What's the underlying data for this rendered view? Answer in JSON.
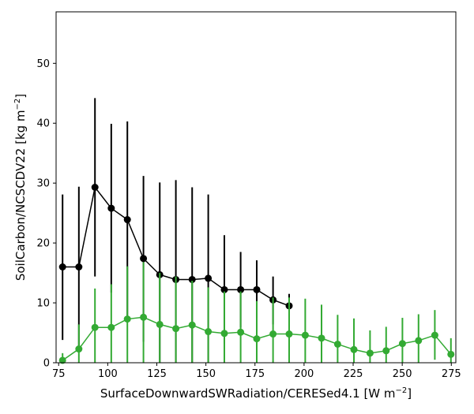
{
  "chart_data": {
    "type": "line",
    "xlabel": "SurfaceDownwardSWRadiation/CERESed4.1 [W m",
    "xlabel_sup": "−2",
    "xlabel_end": "]",
    "ylabel": "SoilCarbon/NCSCDV22 [kg m",
    "ylabel_sup": "−2",
    "ylabel_end": "]",
    "xlim": [
      73.7,
      277.3
    ],
    "ylim": [
      0,
      58.6
    ],
    "x_ticks": [
      75,
      100,
      125,
      150,
      175,
      200,
      225,
      250,
      275
    ],
    "y_ticks": [
      0,
      10,
      20,
      30,
      40,
      50
    ],
    "grid": false,
    "legend": "none",
    "series": [
      {
        "color": "#000000",
        "points": [
          {
            "x": 77.0,
            "y": 16.0,
            "lo": 3.8,
            "hi": 28.1
          },
          {
            "x": 85.3,
            "y": 16.0,
            "lo": 2.5,
            "hi": 29.4
          },
          {
            "x": 93.5,
            "y": 29.3,
            "lo": 14.4,
            "hi": 44.2
          },
          {
            "x": 101.8,
            "y": 25.8,
            "lo": 11.7,
            "hi": 39.9
          },
          {
            "x": 110.0,
            "y": 23.9,
            "lo": 7.5,
            "hi": 40.3
          },
          {
            "x": 118.2,
            "y": 17.4,
            "lo": 3.5,
            "hi": 31.2
          },
          {
            "x": 126.5,
            "y": 14.7,
            "lo": 0.0,
            "hi": 30.1
          },
          {
            "x": 134.7,
            "y": 13.9,
            "lo": 0.0,
            "hi": 30.5
          },
          {
            "x": 143.0,
            "y": 13.9,
            "lo": 0.0,
            "hi": 29.3
          },
          {
            "x": 151.2,
            "y": 14.1,
            "lo": 0.0,
            "hi": 28.1
          },
          {
            "x": 159.4,
            "y": 12.2,
            "lo": 3.2,
            "hi": 21.3
          },
          {
            "x": 167.7,
            "y": 12.2,
            "lo": 5.9,
            "hi": 18.5
          },
          {
            "x": 175.9,
            "y": 12.2,
            "lo": 7.4,
            "hi": 17.1
          },
          {
            "x": 184.2,
            "y": 10.5,
            "lo": 6.4,
            "hi": 14.4
          },
          {
            "x": 192.4,
            "y": 9.5,
            "lo": 7.4,
            "hi": 11.5
          }
        ]
      },
      {
        "color": "#33aa33",
        "points": [
          {
            "x": 77.0,
            "y": 0.4,
            "lo": 0.0,
            "hi": 1.6
          },
          {
            "x": 85.3,
            "y": 2.3,
            "lo": 0.0,
            "hi": 6.4
          },
          {
            "x": 93.5,
            "y": 5.9,
            "lo": 0.0,
            "hi": 12.4
          },
          {
            "x": 101.8,
            "y": 5.9,
            "lo": 0.0,
            "hi": 13.1
          },
          {
            "x": 110.0,
            "y": 7.3,
            "lo": 0.0,
            "hi": 16.1
          },
          {
            "x": 118.2,
            "y": 7.6,
            "lo": 0.0,
            "hi": 16.8
          },
          {
            "x": 126.5,
            "y": 6.4,
            "lo": 0.0,
            "hi": 15.0
          },
          {
            "x": 134.7,
            "y": 5.7,
            "lo": 0.0,
            "hi": 14.4
          },
          {
            "x": 143.0,
            "y": 6.3,
            "lo": 0.0,
            "hi": 13.7
          },
          {
            "x": 151.2,
            "y": 5.2,
            "lo": 0.0,
            "hi": 12.6
          },
          {
            "x": 159.4,
            "y": 4.9,
            "lo": 0.0,
            "hi": 11.9
          },
          {
            "x": 167.7,
            "y": 5.1,
            "lo": 0.0,
            "hi": 11.9
          },
          {
            "x": 175.9,
            "y": 4.0,
            "lo": 0.0,
            "hi": 10.3
          },
          {
            "x": 184.2,
            "y": 4.8,
            "lo": 0.0,
            "hi": 10.9
          },
          {
            "x": 192.4,
            "y": 4.8,
            "lo": 0.0,
            "hi": 10.9
          },
          {
            "x": 200.6,
            "y": 4.6,
            "lo": 0.0,
            "hi": 10.7
          },
          {
            "x": 208.9,
            "y": 4.1,
            "lo": 0.0,
            "hi": 9.7
          },
          {
            "x": 217.1,
            "y": 3.1,
            "lo": 0.0,
            "hi": 8.0
          },
          {
            "x": 225.4,
            "y": 2.2,
            "lo": 0.0,
            "hi": 7.4
          },
          {
            "x": 233.6,
            "y": 1.6,
            "lo": 0.0,
            "hi": 5.4
          },
          {
            "x": 241.8,
            "y": 2.0,
            "lo": 0.0,
            "hi": 6.0
          },
          {
            "x": 250.1,
            "y": 3.2,
            "lo": 0.0,
            "hi": 7.5
          },
          {
            "x": 258.3,
            "y": 3.7,
            "lo": 0.0,
            "hi": 8.1
          },
          {
            "x": 266.6,
            "y": 4.6,
            "lo": 0.5,
            "hi": 8.8
          },
          {
            "x": 274.8,
            "y": 1.4,
            "lo": 0.0,
            "hi": 4.1
          }
        ]
      }
    ]
  }
}
